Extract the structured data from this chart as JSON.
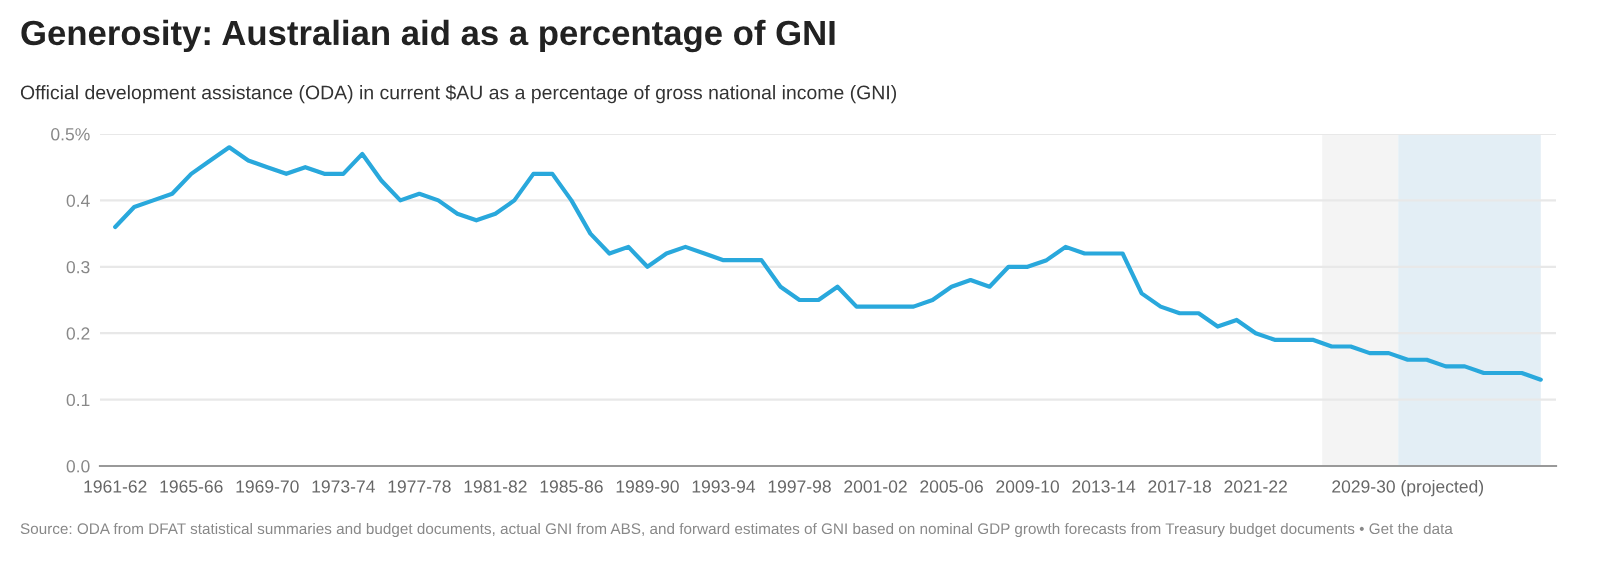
{
  "chart_data": {
    "type": "line",
    "title": "Generosity: Australian aid as a percentage of GNI",
    "subtitle": "Official development assistance (ODA) in current $AU as a percentage of gross national income (GNI)",
    "categories": [
      "1961-62",
      null,
      null,
      null,
      "1965-66",
      null,
      null,
      null,
      "1969-70",
      null,
      null,
      null,
      "1973-74",
      null,
      null,
      null,
      "1977-78",
      null,
      null,
      null,
      "1981-82",
      null,
      null,
      null,
      "1985-86",
      null,
      null,
      null,
      "1989-90",
      null,
      null,
      null,
      "1993-94",
      null,
      null,
      null,
      "1997-98",
      null,
      null,
      null,
      "2001-02",
      null,
      null,
      null,
      "2005-06",
      null,
      null,
      null,
      "2009-10",
      null,
      null,
      null,
      "2013-14",
      null,
      null,
      null,
      "2017-18",
      null,
      null,
      null,
      "2021-22",
      null,
      null,
      null,
      null,
      null,
      null,
      null,
      "2029-30 (projected)",
      null,
      null,
      null,
      null,
      null,
      null,
      null
    ],
    "series": [
      {
        "color": "#29a8dc",
        "values": [
          0.36,
          0.39,
          0.4,
          0.41,
          0.44,
          0.46,
          0.48,
          0.46,
          0.45,
          0.44,
          0.45,
          0.44,
          0.44,
          0.47,
          0.43,
          0.4,
          0.41,
          0.4,
          0.38,
          0.37,
          0.38,
          0.4,
          0.44,
          0.44,
          0.4,
          0.35,
          0.32,
          0.33,
          0.3,
          0.32,
          0.33,
          0.32,
          0.31,
          0.31,
          0.31,
          0.27,
          0.25,
          0.25,
          0.27,
          0.24,
          0.24,
          0.24,
          0.24,
          0.25,
          0.27,
          0.28,
          0.27,
          0.3,
          0.3,
          0.31,
          0.33,
          0.32,
          0.32,
          0.32,
          0.26,
          0.24,
          0.23,
          0.23,
          0.21,
          0.22,
          0.2,
          0.19,
          0.19,
          0.19,
          0.18,
          0.18,
          0.17,
          0.17,
          0.16,
          0.16,
          0.15,
          0.15,
          0.14,
          0.14,
          0.14,
          0.13
        ]
      }
    ],
    "ylim": [
      0,
      0.5
    ],
    "yticks": [
      {
        "value": 0,
        "label": "0.0"
      },
      0.1,
      0.2,
      0.3,
      0.4,
      {
        "value": 0.5,
        "label": "0.5%"
      }
    ],
    "grid": "y",
    "annotations": [
      "Source: ODA from DFAT statistical summaries and budget documents, actual GNI from ABS, and forward estimates of GNI based on nominal GDP growth forecasts from Treasury budget documents • Get the data"
    ]
  }
}
